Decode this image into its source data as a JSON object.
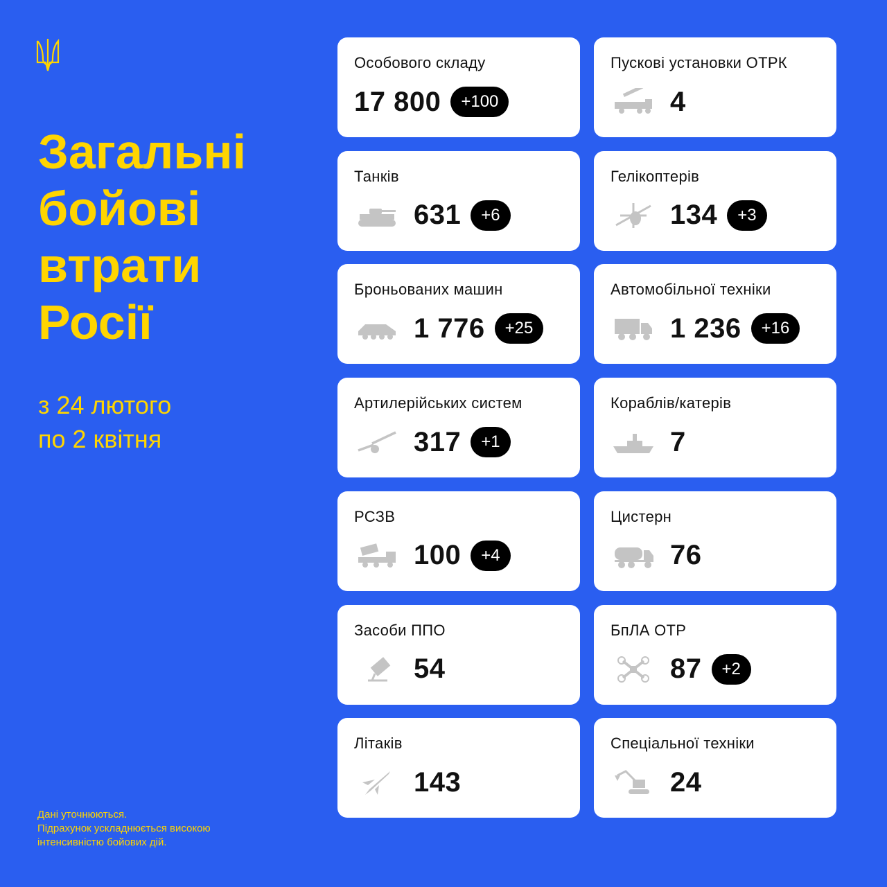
{
  "header": {
    "emblem": "trident-icon",
    "title_lines": [
      "Загальні",
      "бойові",
      "втрати",
      "Росії"
    ],
    "period_lines": [
      "з 24 лютого",
      "по 2 квітня"
    ]
  },
  "footer": {
    "lines": [
      "Дані уточнюються.",
      "Підрахунок ускладнюється високою",
      "інтенсивністю бойових дій."
    ]
  },
  "colors": {
    "background": "#2a5ef0",
    "accent": "#ffd500",
    "card": "#ffffff",
    "badge": "#000000",
    "icon": "#c4c4c4"
  },
  "cards": [
    {
      "label": "Особового складу",
      "value": "17 800",
      "delta": "+100",
      "icon": ""
    },
    {
      "label": "Пускові установки ОТРК",
      "value": "4",
      "delta": "",
      "icon": "missile-launcher-icon"
    },
    {
      "label": "Танків",
      "value": "631",
      "delta": "+6",
      "icon": "tank-icon"
    },
    {
      "label": "Гелікоптерів",
      "value": "134",
      "delta": "+3",
      "icon": "helicopter-icon"
    },
    {
      "label": "Броньованих машин",
      "value": "1 776",
      "delta": "+25",
      "icon": "armored-vehicle-icon"
    },
    {
      "label": "Автомобільної техніки",
      "value": "1 236",
      "delta": "+16",
      "icon": "truck-icon"
    },
    {
      "label": "Артилерійських систем",
      "value": "317",
      "delta": "+1",
      "icon": "artillery-icon"
    },
    {
      "label": "Кораблів/катерів",
      "value": "7",
      "delta": "",
      "icon": "ship-icon"
    },
    {
      "label": "РСЗВ",
      "value": "100",
      "delta": "+4",
      "icon": "mlrs-icon"
    },
    {
      "label": "Цистерн",
      "value": "76",
      "delta": "",
      "icon": "tanker-truck-icon"
    },
    {
      "label": "Засоби ППО",
      "value": "54",
      "delta": "",
      "icon": "air-defense-icon"
    },
    {
      "label": "БпЛА ОТР",
      "value": "87",
      "delta": "+2",
      "icon": "drone-icon"
    },
    {
      "label": "Літаків",
      "value": "143",
      "delta": "",
      "icon": "jet-icon"
    },
    {
      "label": "Спеціальної техніки",
      "value": "24",
      "delta": "",
      "icon": "excavator-icon"
    }
  ]
}
